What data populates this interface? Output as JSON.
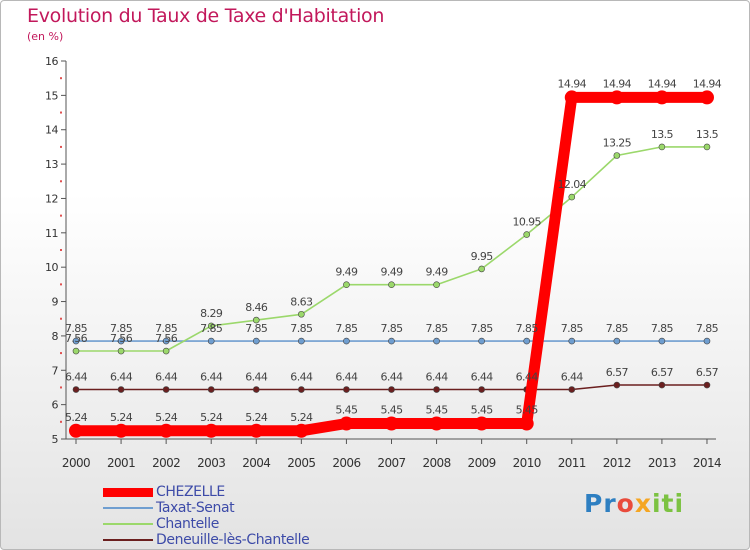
{
  "title": "Evolution du Taux de Taxe d'Habitation",
  "subtitle": "(en %)",
  "logo_text": "Proxiti",
  "chart_data": {
    "type": "line",
    "x": [
      "2000",
      "2001",
      "2002",
      "2003",
      "2004",
      "2005",
      "2006",
      "2007",
      "2008",
      "2009",
      "2010",
      "2011",
      "2012",
      "2013",
      "2014"
    ],
    "ylim": [
      5,
      16
    ],
    "yticks": [
      5,
      6,
      7,
      8,
      9,
      10,
      11,
      12,
      13,
      14,
      15,
      16
    ],
    "grid": false,
    "legend_position": "bottom-left",
    "series": [
      {
        "name": "CHEZELLE",
        "color": "#ff0000",
        "values": [
          5.24,
          5.24,
          5.24,
          5.24,
          5.24,
          5.24,
          5.45,
          5.45,
          5.45,
          5.45,
          5.45,
          14.94,
          14.94,
          14.94,
          14.94
        ]
      },
      {
        "name": "Taxat-Senat",
        "color": "#6f9ed0",
        "values": [
          7.85,
          7.85,
          7.85,
          7.85,
          7.85,
          7.85,
          7.85,
          7.85,
          7.85,
          7.85,
          7.85,
          7.85,
          7.85,
          7.85,
          7.85
        ]
      },
      {
        "name": "Chantelle",
        "color": "#9bd86b",
        "values": [
          7.56,
          7.56,
          7.56,
          8.29,
          8.46,
          8.63,
          9.49,
          9.49,
          9.49,
          9.95,
          10.95,
          12.04,
          13.25,
          13.5,
          13.5
        ]
      },
      {
        "name": "Deneuille-lès-Chantelle",
        "color": "#6b1f1f",
        "values": [
          6.44,
          6.44,
          6.44,
          6.44,
          6.44,
          6.44,
          6.44,
          6.44,
          6.44,
          6.44,
          6.44,
          6.44,
          6.57,
          6.57,
          6.57
        ]
      }
    ]
  }
}
